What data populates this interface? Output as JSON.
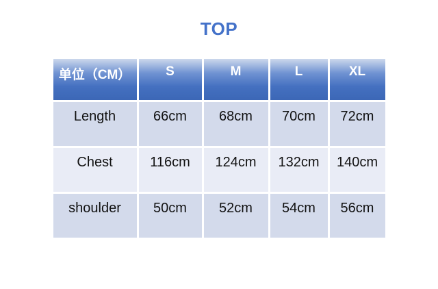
{
  "title": "TOP",
  "table": {
    "header": [
      "单位（CM）",
      "S",
      "M",
      "L",
      "XL"
    ],
    "rows": [
      {
        "label": "Length",
        "values": [
          "66cm",
          "68cm",
          "70cm",
          "72cm"
        ]
      },
      {
        "label": "Chest",
        "values": [
          "116cm",
          "124cm",
          "132cm",
          "140cm"
        ]
      },
      {
        "label": "shoulder",
        "values": [
          "50cm",
          "52cm",
          "54cm",
          "56cm"
        ]
      }
    ]
  },
  "chart_data": {
    "type": "table",
    "title": "TOP",
    "columns": [
      "单位（CM）",
      "S",
      "M",
      "L",
      "XL"
    ],
    "rows": [
      [
        "Length",
        "66cm",
        "68cm",
        "70cm",
        "72cm"
      ],
      [
        "Chest",
        "116cm",
        "124cm",
        "132cm",
        "140cm"
      ],
      [
        "shoulder",
        "50cm",
        "52cm",
        "54cm",
        "56cm"
      ]
    ]
  },
  "colors": {
    "title_text": "#4472c9",
    "header_gradient_top": "#ccd8ec",
    "header_gradient_bottom": "#3c67b6",
    "header_text": "#ffffff",
    "row_band_dark": "#d3daeb",
    "row_band_light": "#e9ecf6",
    "body_text": "#111111",
    "background": "#ffffff"
  }
}
